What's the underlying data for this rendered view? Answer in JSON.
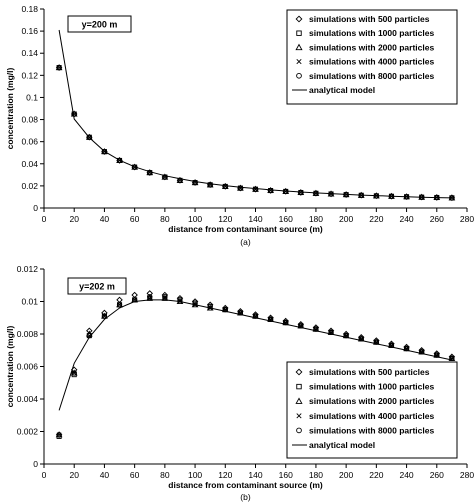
{
  "chart_data": [
    {
      "type": "scatter",
      "panel_label": "(a)",
      "annotation": "y=200 m",
      "xlabel": "distance from contaminant source (m)",
      "ylabel": "concentration (mg/l)",
      "xlim": [
        0,
        280
      ],
      "ylim": [
        0,
        0.18
      ],
      "x_ticks": [
        0,
        20,
        40,
        60,
        80,
        100,
        120,
        140,
        160,
        180,
        200,
        220,
        240,
        260,
        280
      ],
      "y_ticks": [
        "0",
        "0.02",
        "0.04",
        "0.06",
        "0.08",
        "0.1",
        "0.12",
        "0.14",
        "0.16",
        "0.18"
      ],
      "grid": false,
      "legend_position": "top-right",
      "x": [
        10,
        20,
        30,
        40,
        50,
        60,
        70,
        80,
        90,
        100,
        110,
        120,
        130,
        140,
        150,
        160,
        170,
        180,
        190,
        200,
        210,
        220,
        230,
        240,
        250,
        260,
        270
      ],
      "series": [
        {
          "name": "simulations with 500 particles",
          "marker": "diamond",
          "values": [
            0.127,
            0.085,
            0.064,
            0.051,
            0.043,
            0.037,
            0.032,
            0.028,
            0.025,
            0.023,
            0.021,
            0.0195,
            0.018,
            0.017,
            0.0158,
            0.015,
            0.014,
            0.0133,
            0.0127,
            0.0121,
            0.0115,
            0.011,
            0.0106,
            0.0102,
            0.0098,
            0.0095,
            0.0092
          ]
        },
        {
          "name": "simulations with 1000 particles",
          "marker": "square",
          "values": [
            0.127,
            0.085,
            0.064,
            0.051,
            0.043,
            0.037,
            0.032,
            0.028,
            0.025,
            0.023,
            0.021,
            0.0195,
            0.018,
            0.017,
            0.0158,
            0.015,
            0.014,
            0.0133,
            0.0127,
            0.0121,
            0.0115,
            0.011,
            0.0106,
            0.0102,
            0.0098,
            0.0095,
            0.0092
          ]
        },
        {
          "name": "simulations with 2000 particles",
          "marker": "triangle",
          "values": [
            0.127,
            0.085,
            0.064,
            0.051,
            0.043,
            0.037,
            0.032,
            0.028,
            0.025,
            0.023,
            0.021,
            0.0195,
            0.018,
            0.017,
            0.0158,
            0.015,
            0.014,
            0.0133,
            0.0127,
            0.0121,
            0.0115,
            0.011,
            0.0106,
            0.0102,
            0.0098,
            0.0095,
            0.0092
          ]
        },
        {
          "name": "simulations with 4000 particles",
          "marker": "cross",
          "values": [
            0.127,
            0.085,
            0.064,
            0.051,
            0.043,
            0.037,
            0.032,
            0.028,
            0.025,
            0.023,
            0.021,
            0.0195,
            0.018,
            0.017,
            0.0158,
            0.015,
            0.014,
            0.0133,
            0.0127,
            0.0121,
            0.0115,
            0.011,
            0.0106,
            0.0102,
            0.0098,
            0.0095,
            0.0092
          ]
        },
        {
          "name": "simulations with 8000 particles",
          "marker": "circle",
          "values": [
            0.127,
            0.085,
            0.064,
            0.051,
            0.043,
            0.037,
            0.032,
            0.028,
            0.025,
            0.023,
            0.021,
            0.0195,
            0.018,
            0.017,
            0.0158,
            0.015,
            0.014,
            0.0133,
            0.0127,
            0.0121,
            0.0115,
            0.011,
            0.0106,
            0.0102,
            0.0098,
            0.0095,
            0.0092
          ]
        },
        {
          "name": "analytical model",
          "marker": "line",
          "values": [
            0.161,
            0.0805,
            0.0637,
            0.0513,
            0.0432,
            0.0373,
            0.0328,
            0.0292,
            0.0264,
            0.024,
            0.022,
            0.0203,
            0.0188,
            0.0176,
            0.0164,
            0.0154,
            0.0145,
            0.0137,
            0.013,
            0.0123,
            0.0117,
            0.0112,
            0.0107,
            0.0102,
            0.0098,
            0.0094,
            0.0091
          ]
        }
      ]
    },
    {
      "type": "scatter",
      "panel_label": "(b)",
      "annotation": "y=202 m",
      "xlabel": "distance from contaminant source (m)",
      "ylabel": "concentration (mg/l)",
      "xlim": [
        0,
        280
      ],
      "ylim": [
        0,
        0.012
      ],
      "x_ticks": [
        0,
        20,
        40,
        60,
        80,
        100,
        120,
        140,
        160,
        180,
        200,
        220,
        240,
        260,
        280
      ],
      "y_ticks": [
        "0",
        "0.002",
        "0.004",
        "0.006",
        "0.008",
        "0.01",
        "0.012"
      ],
      "grid": false,
      "legend_position": "bottom-right",
      "x": [
        10,
        20,
        30,
        40,
        50,
        60,
        70,
        80,
        90,
        100,
        110,
        120,
        130,
        140,
        150,
        160,
        170,
        180,
        190,
        200,
        210,
        220,
        230,
        240,
        250,
        260,
        270
      ],
      "series": [
        {
          "name": "simulations with 500 particles",
          "marker": "diamond",
          "values": [
            0.0018,
            0.0058,
            0.0082,
            0.0093,
            0.0101,
            0.0104,
            0.0105,
            0.0104,
            0.0102,
            0.01,
            0.0098,
            0.0096,
            0.0094,
            0.0092,
            0.009,
            0.0088,
            0.0086,
            0.0084,
            0.0082,
            0.008,
            0.0078,
            0.0076,
            0.0074,
            0.0072,
            0.007,
            0.0068,
            0.0066
          ]
        },
        {
          "name": "simulations with 1000 particles",
          "marker": "square",
          "values": [
            0.0017,
            0.0055,
            0.0079,
            0.0091,
            0.0098,
            0.0101,
            0.0102,
            0.0102,
            0.0101,
            0.0099,
            0.0097,
            0.0095,
            0.0093,
            0.0091,
            0.0089,
            0.0087,
            0.0085,
            0.0083,
            0.0081,
            0.0079,
            0.0077,
            0.0075,
            0.0073,
            0.0071,
            0.0069,
            0.0067,
            0.0065
          ]
        },
        {
          "name": "simulations with 2000 particles",
          "marker": "triangle",
          "values": [
            0.0018,
            0.0056,
            0.008,
            0.0091,
            0.0098,
            0.0101,
            0.0102,
            0.0102,
            0.01,
            0.0098,
            0.0096,
            0.0095,
            0.0093,
            0.0091,
            0.0089,
            0.0087,
            0.0085,
            0.0083,
            0.0081,
            0.0079,
            0.0077,
            0.0075,
            0.0073,
            0.0071,
            0.0069,
            0.0067,
            0.0065
          ]
        },
        {
          "name": "simulations with 4000 particles",
          "marker": "cross",
          "values": [
            0.0018,
            0.0056,
            0.0079,
            0.0091,
            0.0098,
            0.0101,
            0.0102,
            0.0102,
            0.01,
            0.0098,
            0.0096,
            0.0095,
            0.0093,
            0.0091,
            0.0089,
            0.0087,
            0.0085,
            0.0083,
            0.0081,
            0.0079,
            0.0077,
            0.0075,
            0.0073,
            0.0071,
            0.0069,
            0.0067,
            0.0065
          ]
        },
        {
          "name": "simulations with 8000 particles",
          "marker": "circle",
          "values": [
            0.0018,
            0.0056,
            0.0079,
            0.0091,
            0.0098,
            0.0101,
            0.0103,
            0.0103,
            0.0101,
            0.0099,
            0.0097,
            0.0095,
            0.0093,
            0.0091,
            0.0089,
            0.0087,
            0.0085,
            0.0083,
            0.0081,
            0.0079,
            0.0077,
            0.0075,
            0.0073,
            0.0071,
            0.0069,
            0.0067,
            0.0065
          ]
        },
        {
          "name": "analytical model",
          "marker": "line",
          "values": [
            0.0033,
            0.0062,
            0.0078,
            0.0089,
            0.0096,
            0.01,
            0.0101,
            0.0101,
            0.01,
            0.0098,
            0.0096,
            0.0094,
            0.0092,
            0.009,
            0.0088,
            0.0086,
            0.0084,
            0.0082,
            0.008,
            0.0078,
            0.0076,
            0.0074,
            0.0072,
            0.007,
            0.0068,
            0.0066,
            0.0064
          ]
        }
      ]
    }
  ]
}
